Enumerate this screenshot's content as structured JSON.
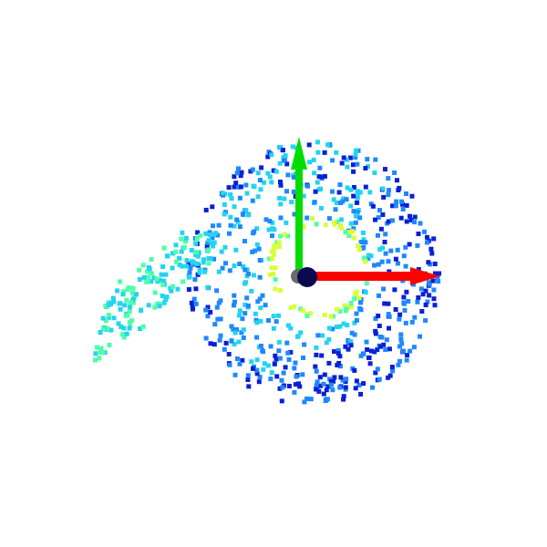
{
  "viewer": {
    "background": "#ffffff",
    "point_shape": "square"
  },
  "point_cloud": {
    "colormap": "jet",
    "colors": {
      "far": "#0a1fd6",
      "mid": "#1e88ff",
      "near": "#22d4f0",
      "closest": "#4dffa8",
      "hot": "#d8ff3a"
    }
  },
  "axes": {
    "x_axis": {
      "direction": "right",
      "color": "#ff0000"
    },
    "y_axis": {
      "direction": "up",
      "color": "#00dd00"
    },
    "z_axis": {
      "direction": "toward-viewer",
      "color": "#0a0a50"
    },
    "origin_color": "#6b6b6b"
  }
}
